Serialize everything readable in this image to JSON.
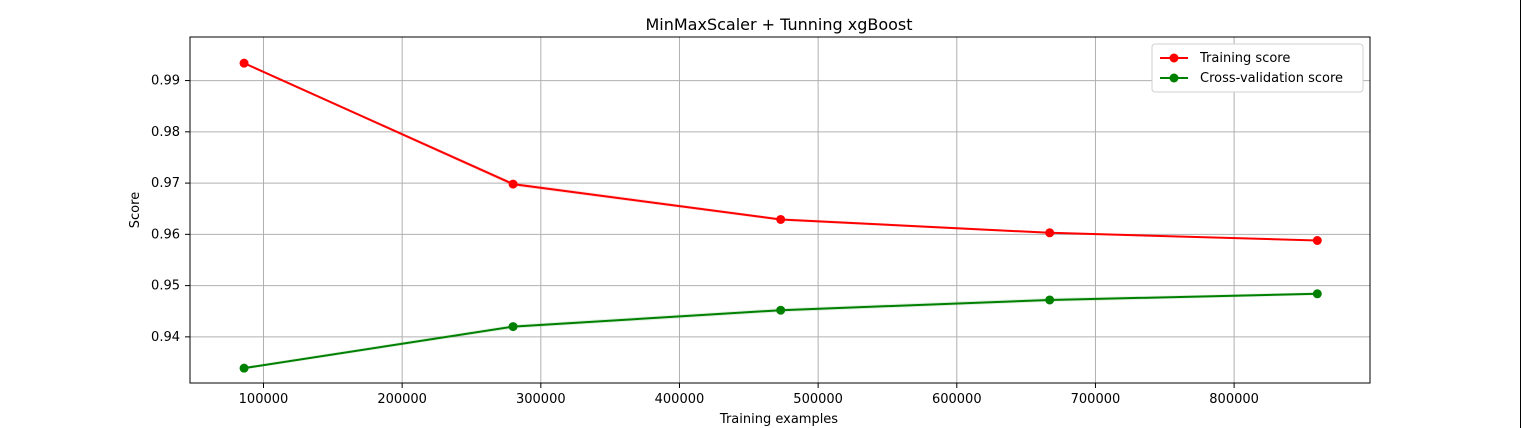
{
  "chart_data": {
    "type": "line",
    "title": "MinMaxScaler + Tunning xgBoost",
    "xlabel": "Training examples",
    "ylabel": "Score",
    "xlim": [
      47000,
      898000
    ],
    "ylim": [
      0.931,
      0.9985
    ],
    "xticks": [
      100000,
      200000,
      300000,
      400000,
      500000,
      600000,
      700000,
      800000
    ],
    "yticks": [
      0.94,
      0.95,
      0.96,
      0.97,
      0.98,
      0.99
    ],
    "xtick_labels": [
      "100000",
      "200000",
      "300000",
      "400000",
      "500000",
      "600000",
      "700000",
      "800000"
    ],
    "ytick_labels": [
      "0.94",
      "0.95",
      "0.96",
      "0.97",
      "0.98",
      "0.99"
    ],
    "grid": true,
    "legend_position": "top-right",
    "x": [
      86000,
      280000,
      473000,
      667000,
      860000
    ],
    "series": [
      {
        "name": "Training score",
        "color": "#ff0000",
        "band_color": "#ff0000",
        "values": [
          0.9934,
          0.9698,
          0.9629,
          0.9603,
          0.9588
        ],
        "band": [
          0.0002,
          0.0004,
          0.0003,
          0.0002,
          0.0001
        ]
      },
      {
        "name": "Cross-validation score",
        "color": "#008000",
        "band_color": "#008000",
        "values": [
          0.9339,
          0.942,
          0.9452,
          0.9472,
          0.9484
        ],
        "band": [
          0.0003,
          0.0004,
          0.0004,
          0.0004,
          0.0003
        ]
      }
    ]
  }
}
